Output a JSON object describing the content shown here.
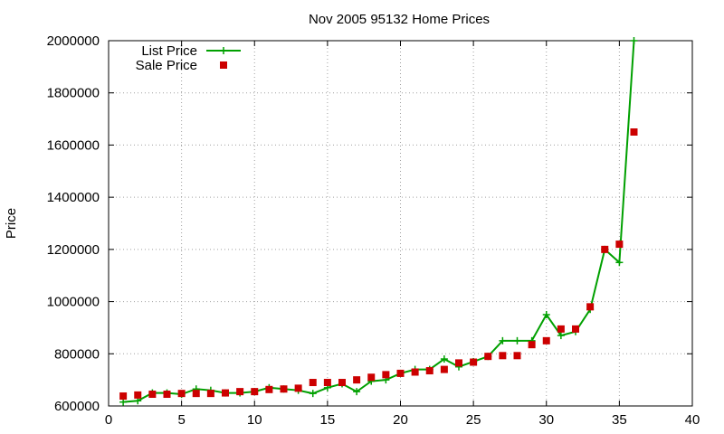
{
  "chart_data": {
    "type": "line",
    "title": "Nov 2005 95132 Home Prices",
    "xlabel": "",
    "ylabel": "Price",
    "xlim": [
      0,
      40
    ],
    "ylim": [
      600000,
      2000000
    ],
    "x_ticks": [
      0,
      5,
      10,
      15,
      20,
      25,
      30,
      35,
      40
    ],
    "y_ticks": [
      600000,
      800000,
      1000000,
      1200000,
      1400000,
      1600000,
      1800000,
      2000000
    ],
    "grid": true,
    "legend_position": "top-left",
    "series": [
      {
        "name": "List Price",
        "style": "line-plus",
        "color": "#00a000",
        "x": [
          1,
          2,
          3,
          4,
          5,
          6,
          7,
          8,
          9,
          10,
          11,
          12,
          13,
          14,
          15,
          16,
          17,
          18,
          19,
          20,
          21,
          22,
          23,
          24,
          25,
          26,
          27,
          28,
          29,
          30,
          31,
          32,
          33,
          34,
          35,
          36
        ],
        "y": [
          615000,
          620000,
          650000,
          650000,
          645000,
          665000,
          660000,
          650000,
          650000,
          655000,
          670000,
          665000,
          660000,
          648000,
          670000,
          685000,
          655000,
          695000,
          700000,
          725000,
          740000,
          740000,
          780000,
          750000,
          770000,
          790000,
          850000,
          850000,
          850000,
          950000,
          870000,
          885000,
          970000,
          1200000,
          1150000,
          2000000
        ]
      },
      {
        "name": "Sale Price",
        "style": "square-points",
        "color": "#cc0000",
        "x": [
          1,
          2,
          3,
          4,
          5,
          6,
          7,
          8,
          9,
          10,
          11,
          12,
          13,
          14,
          15,
          16,
          17,
          18,
          19,
          20,
          21,
          22,
          23,
          24,
          25,
          26,
          27,
          28,
          29,
          30,
          31,
          32,
          33,
          34,
          35,
          36
        ],
        "y": [
          638000,
          642000,
          645000,
          645000,
          648000,
          648000,
          648000,
          650000,
          655000,
          655000,
          663000,
          665000,
          668000,
          690000,
          690000,
          690000,
          700000,
          710000,
          720000,
          725000,
          730000,
          735000,
          740000,
          765000,
          768000,
          790000,
          793000,
          793000,
          835000,
          850000,
          895000,
          895000,
          980000,
          1200000,
          1220000,
          1650000
        ]
      }
    ]
  }
}
